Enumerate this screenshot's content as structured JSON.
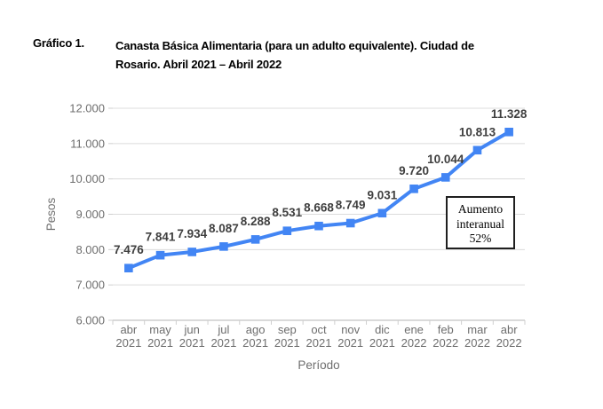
{
  "figure": {
    "label": "Gráfico 1.",
    "title_lines": [
      "Canasta Básica Alimentaria (para un adulto equivalente). Ciudad de",
      "Rosario. Abril 2021 – Abril 2022"
    ]
  },
  "chart_data": {
    "type": "line",
    "title": "Canasta Básica Alimentaria (para un adulto equivalente). Ciudad de Rosario. Abril 2021 – Abril 2022",
    "xlabel": "Período",
    "ylabel": "Pesos",
    "ylim": [
      6000,
      12000
    ],
    "ytick_step": 1000,
    "ytick_labels": [
      "6.000",
      "7.000",
      "8.000",
      "9.000",
      "10.000",
      "11.000",
      "12.000"
    ],
    "categories": [
      {
        "month": "abr",
        "year": "2021"
      },
      {
        "month": "may",
        "year": "2021"
      },
      {
        "month": "jun",
        "year": "2021"
      },
      {
        "month": "jul",
        "year": "2021"
      },
      {
        "month": "ago",
        "year": "2021"
      },
      {
        "month": "sep",
        "year": "2021"
      },
      {
        "month": "oct",
        "year": "2021"
      },
      {
        "month": "nov",
        "year": "2021"
      },
      {
        "month": "dic",
        "year": "2021"
      },
      {
        "month": "ene",
        "year": "2022"
      },
      {
        "month": "feb",
        "year": "2022"
      },
      {
        "month": "mar",
        "year": "2022"
      },
      {
        "month": "abr",
        "year": "2022"
      }
    ],
    "series": [
      {
        "values": [
          7476,
          7841,
          7934,
          8087,
          8288,
          8531,
          8668,
          8749,
          9031,
          9720,
          10044,
          10813,
          11328
        ],
        "point_labels": [
          "7.476",
          "7.841",
          "7.934",
          "8.087",
          "8.288",
          "8.531",
          "8.668",
          "8.749",
          "9.031",
          "9.720",
          "10.044",
          "10.813",
          "11.328"
        ]
      }
    ],
    "annotation": {
      "text": "Aumento interanual 52%"
    },
    "grid": true,
    "legend": false
  },
  "colors": {
    "series": "#4285f4",
    "grid": "#dcdcdc",
    "axis_line": "#b5b5b5",
    "tick": "#cfcfcf",
    "tick_text": "#6e6e6e",
    "point_label": "#3f3f3f",
    "title_text": "#000000",
    "annotation_border": "#1f1f1f",
    "background": "#ffffff"
  }
}
